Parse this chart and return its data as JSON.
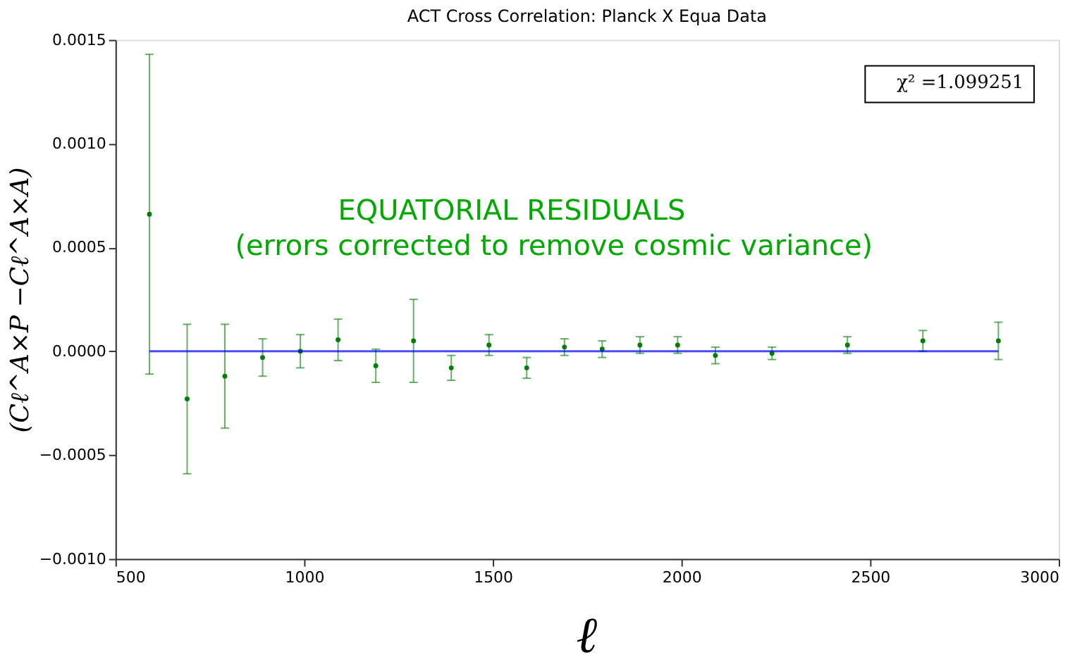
{
  "chart_data": {
    "type": "scatter",
    "title": "ACT Cross Correlation: Planck X Equa Data",
    "xlabel": "ℓ",
    "ylabel": "(Cℓ^A×P −Cℓ^A×A)",
    "annotations": [
      "EQUATORIAL RESIDUALS",
      "(errors corrected to remove cosmic variance)"
    ],
    "x": [
      590,
      690,
      790,
      890,
      990,
      1090,
      1190,
      1290,
      1390,
      1490,
      1590,
      1690,
      1790,
      1890,
      1990,
      2090,
      2240,
      2440,
      2640,
      2840
    ],
    "series": [
      {
        "name": "χ² =1.099251",
        "color": "#008000",
        "marker": "circle",
        "values": [
          0.00066,
          -0.00023,
          -0.00012,
          -3e-05,
          0.0,
          5.5e-05,
          -7e-05,
          5e-05,
          -8e-05,
          3e-05,
          -8e-05,
          2e-05,
          1e-05,
          3e-05,
          3e-05,
          -2e-05,
          -1e-05,
          3e-05,
          5e-05,
          5e-05
        ],
        "errors": [
          0.00077,
          0.00036,
          0.00025,
          9e-05,
          8e-05,
          0.0001,
          8e-05,
          0.0002,
          6e-05,
          5e-05,
          5e-05,
          4e-05,
          4e-05,
          4e-05,
          4e-05,
          4e-05,
          3e-05,
          4e-05,
          5e-05,
          9e-05
        ]
      },
      {
        "type": "line",
        "color": "#0000ff",
        "x": [
          590,
          2840
        ],
        "values": [
          0.0,
          0.0
        ]
      }
    ],
    "xlim": [
      500,
      3000
    ],
    "xticks": [
      500,
      1000,
      1500,
      2000,
      2500,
      3000
    ],
    "ylim": [
      -0.001,
      0.0015
    ],
    "yticks": [
      {
        "value": -0.001,
        "label": "−0.0010"
      },
      {
        "value": -0.0005,
        "label": "−0.0005"
      },
      {
        "value": 0,
        "label": "0.0000"
      },
      {
        "value": 0.0005,
        "label": "0.0005"
      },
      {
        "value": 0.001,
        "label": "0.0010"
      },
      {
        "value": 0.0015,
        "label": "0.0015"
      }
    ],
    "grid": false,
    "legend": "top right"
  }
}
